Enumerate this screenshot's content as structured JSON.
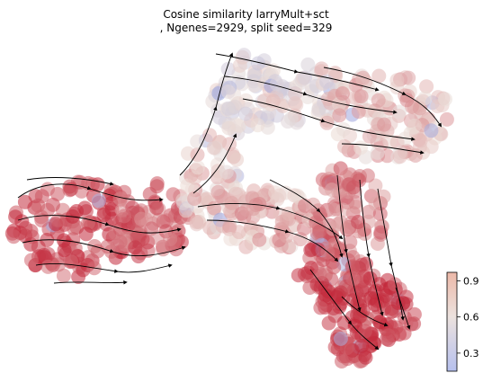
{
  "chart_data": {
    "type": "scatter",
    "title_line1": "Cosine similarity larryMult+sct",
    "title_line2": ", Ngenes=2929, split seed=329",
    "xlabel": "",
    "ylabel": "",
    "overlay": "velocity streamlines",
    "axes_visible": false,
    "grid": false,
    "colormap": "coolwarm",
    "colorbar": {
      "placement": "bottom-right",
      "ticks": [
        0.3,
        0.6,
        0.9
      ],
      "tick_labels": [
        "0.3",
        "0.6",
        "0.9"
      ],
      "range": [
        0.15,
        0.97
      ]
    },
    "colors": {
      "low": "#7f8fe0",
      "mid": "#ecdfd8",
      "high": "#c2283a"
    }
  }
}
